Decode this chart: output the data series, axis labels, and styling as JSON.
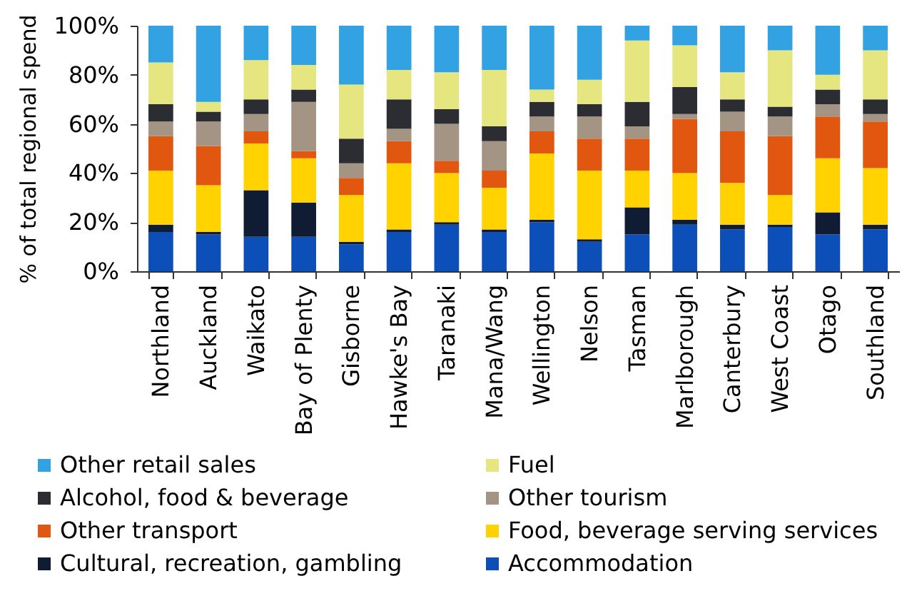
{
  "chart_data": {
    "type": "bar",
    "stacked": true,
    "ylabel": "% of total regional spend",
    "categories": [
      "Northland",
      "Auckland",
      "Waikato",
      "Bay of Plenty",
      "Gisborne",
      "Hawke's Bay",
      "Taranaki",
      "Mana/Wang",
      "Wellington",
      "Nelson",
      "Tasman",
      "Marlborough",
      "Canterbury",
      "West Coast",
      "Otago",
      "Southland"
    ],
    "series": [
      {
        "name": "Accommodation",
        "color": "#0d4fb8",
        "values": [
          16,
          15,
          14,
          14,
          11,
          16,
          19,
          16,
          20,
          12,
          15,
          19,
          17,
          18,
          15,
          17
        ]
      },
      {
        "name": "Cultural, recreation, gambling",
        "color": "#0f1c33",
        "values": [
          3,
          1,
          19,
          14,
          1,
          1,
          1,
          1,
          1,
          1,
          11,
          2,
          2,
          1,
          9,
          2
        ]
      },
      {
        "name": "Food, beverage serving services",
        "color": "#ffd200",
        "values": [
          22,
          19,
          19,
          18,
          19,
          27,
          20,
          17,
          27,
          28,
          15,
          19,
          17,
          12,
          22,
          23
        ]
      },
      {
        "name": "Other transport",
        "color": "#e2570f",
        "values": [
          14,
          16,
          5,
          3,
          7,
          9,
          5,
          7,
          9,
          13,
          13,
          22,
          21,
          24,
          17,
          19
        ]
      },
      {
        "name": "Other tourism",
        "color": "#a39483",
        "values": [
          6,
          10,
          7,
          20,
          6,
          5,
          15,
          12,
          6,
          9,
          5,
          2,
          8,
          8,
          5,
          3
        ]
      },
      {
        "name": "Alcohol, food & beverage",
        "color": "#2b2d33",
        "values": [
          7,
          4,
          6,
          5,
          10,
          12,
          6,
          6,
          6,
          5,
          10,
          11,
          5,
          4,
          6,
          6
        ]
      },
      {
        "name": "Fuel",
        "color": "#e6e680",
        "values": [
          17,
          4,
          16,
          10,
          22,
          12,
          15,
          23,
          5,
          10,
          25,
          17,
          11,
          23,
          6,
          20
        ]
      },
      {
        "name": "Other retail sales",
        "color": "#33a2e2",
        "values": [
          15,
          31,
          14,
          16,
          24,
          18,
          19,
          18,
          26,
          22,
          6,
          8,
          19,
          10,
          20,
          10
        ]
      }
    ],
    "ylim": [
      0,
      100
    ],
    "yticks": [
      {
        "value": 0,
        "label": "0%"
      },
      {
        "value": 20,
        "label": "20%"
      },
      {
        "value": 40,
        "label": "40%"
      },
      {
        "value": 60,
        "label": "60%"
      },
      {
        "value": 80,
        "label": "80%"
      },
      {
        "value": 100,
        "label": "100%"
      }
    ],
    "legend": "bottom"
  }
}
